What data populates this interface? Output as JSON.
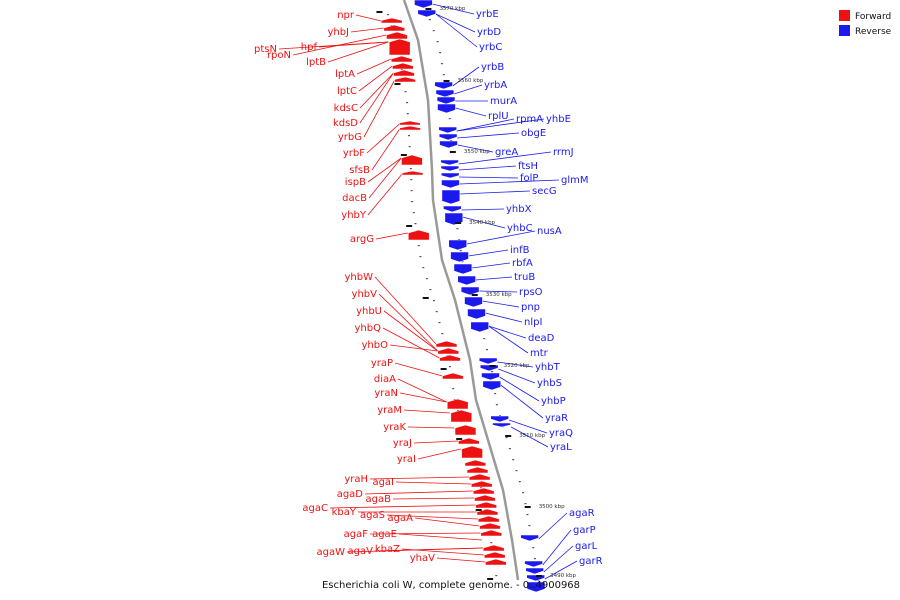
{
  "title": "Escherichia coli W, complete genome. - 0..4900968",
  "colors": {
    "forward": "#ee1111",
    "reverse": "#1a1aee",
    "backbone": "#999999"
  },
  "legend": [
    {
      "label": "Forward",
      "strand": "forward"
    },
    {
      "label": "Reverse",
      "strand": "reverse"
    }
  ],
  "kbp_markers": [
    "3570 kbp",
    "3560 kbp",
    "3550 kbp",
    "3540 kbp",
    "3530 kbp",
    "3520 kbp",
    "3510 kbp",
    "3500 kbp",
    "3490 kbp"
  ],
  "forward_genes": [
    "npr",
    "yhbJ",
    "ptsN",
    "hpf",
    "rpoN",
    "lptB",
    "lptA",
    "lptC",
    "kdsC",
    "kdsD",
    "yrbG",
    "yrbF",
    "sfsB",
    "ispB",
    "dacB",
    "yhbY",
    "argG",
    "yhbW",
    "yhbV",
    "yhbU",
    "yhbQ",
    "yhbO",
    "yraP",
    "diaA",
    "yraN",
    "yraM",
    "yraK",
    "yraJ",
    "yraI",
    "yraH",
    "agaI",
    "agaD",
    "agaB",
    "agaC",
    "kbaY",
    "agaS",
    "agaA",
    "agaF",
    "agaE",
    "agaW",
    "agaV",
    "kbaZ",
    "yhaV"
  ],
  "reverse_genes": [
    "yrbE",
    "yrbD",
    "yrbC",
    "yrbB",
    "yrbA",
    "murA",
    "rplU",
    "rpmA",
    "yhbE",
    "obgE",
    "greA",
    "rrmJ",
    "ftsH",
    "folP",
    "glmM",
    "secG",
    "yhbX",
    "yhbC",
    "nusA",
    "infB",
    "rbfA",
    "truB",
    "rpsO",
    "pnp",
    "nlpI",
    "deaD",
    "mtr",
    "yhbT",
    "yhbS",
    "yhbP",
    "yraR",
    "yraQ",
    "yraL",
    "agaR",
    "garP",
    "garL",
    "garR"
  ]
}
